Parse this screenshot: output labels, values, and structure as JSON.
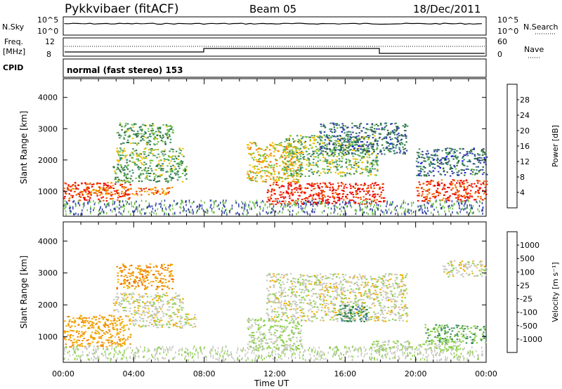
{
  "header": {
    "title": "Pykkvibaer (fitACF)",
    "beam": "Beam 05",
    "date": "18/Dec/2011"
  },
  "strip_panels": {
    "nsky": {
      "label": "N.Sky",
      "left_ticks": [
        "10^5",
        "10^0"
      ],
      "right_ticks": [
        "10^5",
        "10^0"
      ],
      "right_label": "N.Search"
    },
    "freq": {
      "label_line1": "Freq.",
      "label_line2": "[MHz]",
      "left_ticks": [
        "12",
        "8"
      ],
      "right_ticks": [
        "60",
        "0"
      ],
      "right_label": "Nave"
    },
    "cpid": {
      "label": "CPID",
      "text": "normal (fast stereo) 153"
    }
  },
  "colors": {
    "power_scale": [
      "#0000ff",
      "#2e3fa5",
      "#2f6e3a",
      "#3f8f6a",
      "#6ec04a",
      "#f0c000",
      "#f08a00",
      "#f05a00",
      "#ee1100",
      "#ee0000"
    ],
    "velocity_scale": [
      "#2a55b5",
      "#2f5fb7",
      "#2a7a4a",
      "#3c8f5a",
      "#8bd04a",
      "#c8c8c0",
      "#f0b000",
      "#f08a00",
      "#f06000",
      "#ee1100",
      "#ee0000"
    ]
  },
  "chart_data": [
    {
      "type": "heatmap",
      "panel": "power",
      "ylabel": "Slant Range [km]",
      "y_ticks": [
        "1000",
        "2000",
        "3000",
        "4000"
      ],
      "ylim": [
        200,
        4600
      ],
      "x_ticks": [
        "00:00",
        "04:00",
        "08:00",
        "12:00",
        "16:00",
        "20:00",
        "00:00"
      ],
      "xlim_hours": [
        0,
        24
      ],
      "colorbar": {
        "label": "Power [dB]",
        "ticks": [
          "28",
          "24",
          "20",
          "16",
          "12",
          "8",
          "4"
        ],
        "range": [
          0,
          32
        ]
      },
      "regions": [
        {
          "t0": 0.0,
          "t1": 3.8,
          "r0": 700,
          "r1": 1300,
          "level": 26
        },
        {
          "t0": 1.2,
          "t1": 6.2,
          "r0": 900,
          "r1": 1150,
          "level": 22
        },
        {
          "t0": 2.8,
          "t1": 7.0,
          "r0": 1300,
          "r1": 1900,
          "level": 12
        },
        {
          "t0": 3.0,
          "t1": 6.8,
          "r0": 1900,
          "r1": 2400,
          "level": 14
        },
        {
          "t0": 3.0,
          "t1": 6.2,
          "r0": 2500,
          "r1": 3200,
          "level": 12
        },
        {
          "t0": 10.4,
          "t1": 13.5,
          "r0": 1300,
          "r1": 2600,
          "level": 18
        },
        {
          "t0": 11.5,
          "t1": 18.2,
          "r0": 600,
          "r1": 1300,
          "level": 28
        },
        {
          "t0": 12.5,
          "t1": 17.8,
          "r0": 1500,
          "r1": 2800,
          "level": 14
        },
        {
          "t0": 14.5,
          "t1": 19.5,
          "r0": 2200,
          "r1": 3200,
          "level": 8
        },
        {
          "t0": 20.0,
          "t1": 24.0,
          "r0": 700,
          "r1": 1400,
          "level": 26
        },
        {
          "t0": 20.0,
          "t1": 24.0,
          "r0": 1500,
          "r1": 2400,
          "level": 8
        }
      ]
    },
    {
      "type": "heatmap",
      "panel": "velocity",
      "ylabel": "Slant Range [km]",
      "y_ticks": [
        "1000",
        "2000",
        "3000",
        "4000"
      ],
      "ylim": [
        200,
        4600
      ],
      "x_ticks": [
        "00:00",
        "04:00",
        "08:00",
        "12:00",
        "16:00",
        "20:00",
        "00:00"
      ],
      "xlim_hours": [
        0,
        24
      ],
      "xlabel": "Time UT",
      "colorbar": {
        "label": "Velocity [m s^-1]",
        "ticks": [
          "1000",
          "500",
          "100",
          "25",
          "-25",
          "-100",
          "-500",
          "-1000"
        ],
        "range": [
          -1200,
          1200
        ]
      },
      "regions": [
        {
          "t0": 0.0,
          "t1": 3.8,
          "r0": 700,
          "r1": 1700,
          "level": -300
        },
        {
          "t0": 2.8,
          "t1": 6.8,
          "r0": 1800,
          "r1": 2400,
          "level": 0
        },
        {
          "t0": 3.0,
          "t1": 6.2,
          "r0": 2500,
          "r1": 3300,
          "level": -400
        },
        {
          "t0": 3.8,
          "t1": 7.5,
          "r0": 1300,
          "r1": 1800,
          "level": 0
        },
        {
          "t0": 10.4,
          "t1": 13.5,
          "r0": 600,
          "r1": 1600,
          "level": 120
        },
        {
          "t0": 11.5,
          "t1": 19.5,
          "r0": 1500,
          "r1": 3000,
          "level": 0
        },
        {
          "t0": 15.5,
          "t1": 17.2,
          "r0": 1500,
          "r1": 2000,
          "level": 600
        },
        {
          "t0": 17.5,
          "t1": 22.5,
          "r0": 600,
          "r1": 900,
          "level": 120
        },
        {
          "t0": 20.5,
          "t1": 24.0,
          "r0": 800,
          "r1": 1400,
          "level": 300
        },
        {
          "t0": 21.5,
          "t1": 24.0,
          "r0": 2900,
          "r1": 3400,
          "level": 0
        }
      ]
    }
  ]
}
